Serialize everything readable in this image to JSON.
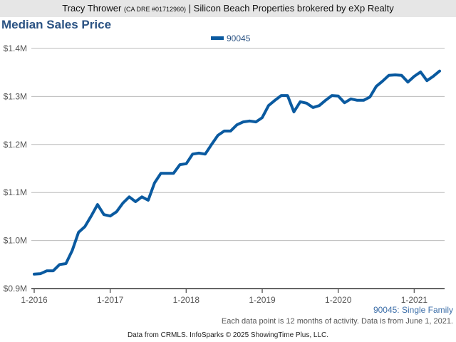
{
  "header": {
    "agent": "Tracy Thrower",
    "license": "(CA DRE #01712960)",
    "separator": "|",
    "brokerage": "Silicon Beach Properties brokered by eXp Realty"
  },
  "footer": {
    "series_label": "90045: Single Family",
    "note": "Each data point is 12 months of activity. Data is from June 1, 2021.",
    "source": "Data from CRMLS. InfoSparks © 2025 ShowingTime Plus, LLC."
  },
  "chart_data": {
    "type": "line",
    "title": "Median Sales Price",
    "xlabel": "",
    "ylabel": "",
    "ylim": [
      900,
      1400
    ],
    "yunit": "thousands USD",
    "yticks": [
      {
        "v": 900,
        "label": "$0.9M"
      },
      {
        "v": 1000,
        "label": "$1.0M"
      },
      {
        "v": 1100,
        "label": "$1.1M"
      },
      {
        "v": 1200,
        "label": "$1.2M"
      },
      {
        "v": 1300,
        "label": "$1.3M"
      },
      {
        "v": 1400,
        "label": "$1.4M"
      }
    ],
    "xticks": [
      {
        "i": 0,
        "label": "1-2016"
      },
      {
        "i": 12,
        "label": "1-2017"
      },
      {
        "i": 24,
        "label": "1-2018"
      },
      {
        "i": 36,
        "label": "1-2019"
      },
      {
        "i": 48,
        "label": "1-2020"
      },
      {
        "i": 60,
        "label": "1-2021"
      }
    ],
    "x_start": "2016-01",
    "x_end": "2021-05",
    "x_step": "month",
    "legend_position": "top-center",
    "grid": true,
    "series": [
      {
        "name": "90045",
        "color": "#0a5aa0",
        "values": [
          930,
          931,
          937,
          937,
          950,
          952,
          979,
          1017,
          1029,
          1051,
          1075,
          1054,
          1051,
          1060,
          1078,
          1091,
          1081,
          1091,
          1084,
          1120,
          1140,
          1140,
          1140,
          1158,
          1160,
          1180,
          1182,
          1180,
          1200,
          1219,
          1228,
          1228,
          1241,
          1247,
          1249,
          1247,
          1256,
          1281,
          1292,
          1302,
          1302,
          1268,
          1289,
          1286,
          1277,
          1281,
          1292,
          1302,
          1301,
          1287,
          1295,
          1292,
          1292,
          1299,
          1321,
          1332,
          1344,
          1345,
          1344,
          1330,
          1342,
          1351,
          1333,
          1342,
          1353
        ]
      }
    ]
  }
}
